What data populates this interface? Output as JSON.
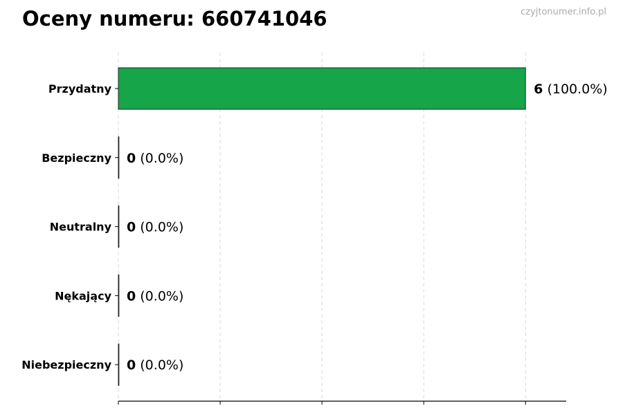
{
  "title": "Oceny numeru: 660741046",
  "watermark": "czyjtonumer.info.pl",
  "chart_data": {
    "type": "bar",
    "orientation": "horizontal",
    "title": "Oceny numeru: 660741046",
    "categories": [
      "Przydatny",
      "Bezpieczny",
      "Neutralny",
      "Nękający",
      "Niebezpieczny"
    ],
    "values": [
      6,
      0,
      0,
      0,
      0
    ],
    "value_labels": [
      "6",
      "0",
      "0",
      "0",
      "0"
    ],
    "percent_labels": [
      "(100.0%)",
      "(0.0%)",
      "(0.0%)",
      "(0.0%)",
      "(0.0%)"
    ],
    "xlim": [
      0,
      6.6
    ],
    "xticks": [
      0,
      1.5,
      3,
      4.5,
      6
    ],
    "xtick_labels_shown": false,
    "grid": "x dashed",
    "bar_color": "#17a54a",
    "xlabel": "",
    "ylabel": ""
  }
}
